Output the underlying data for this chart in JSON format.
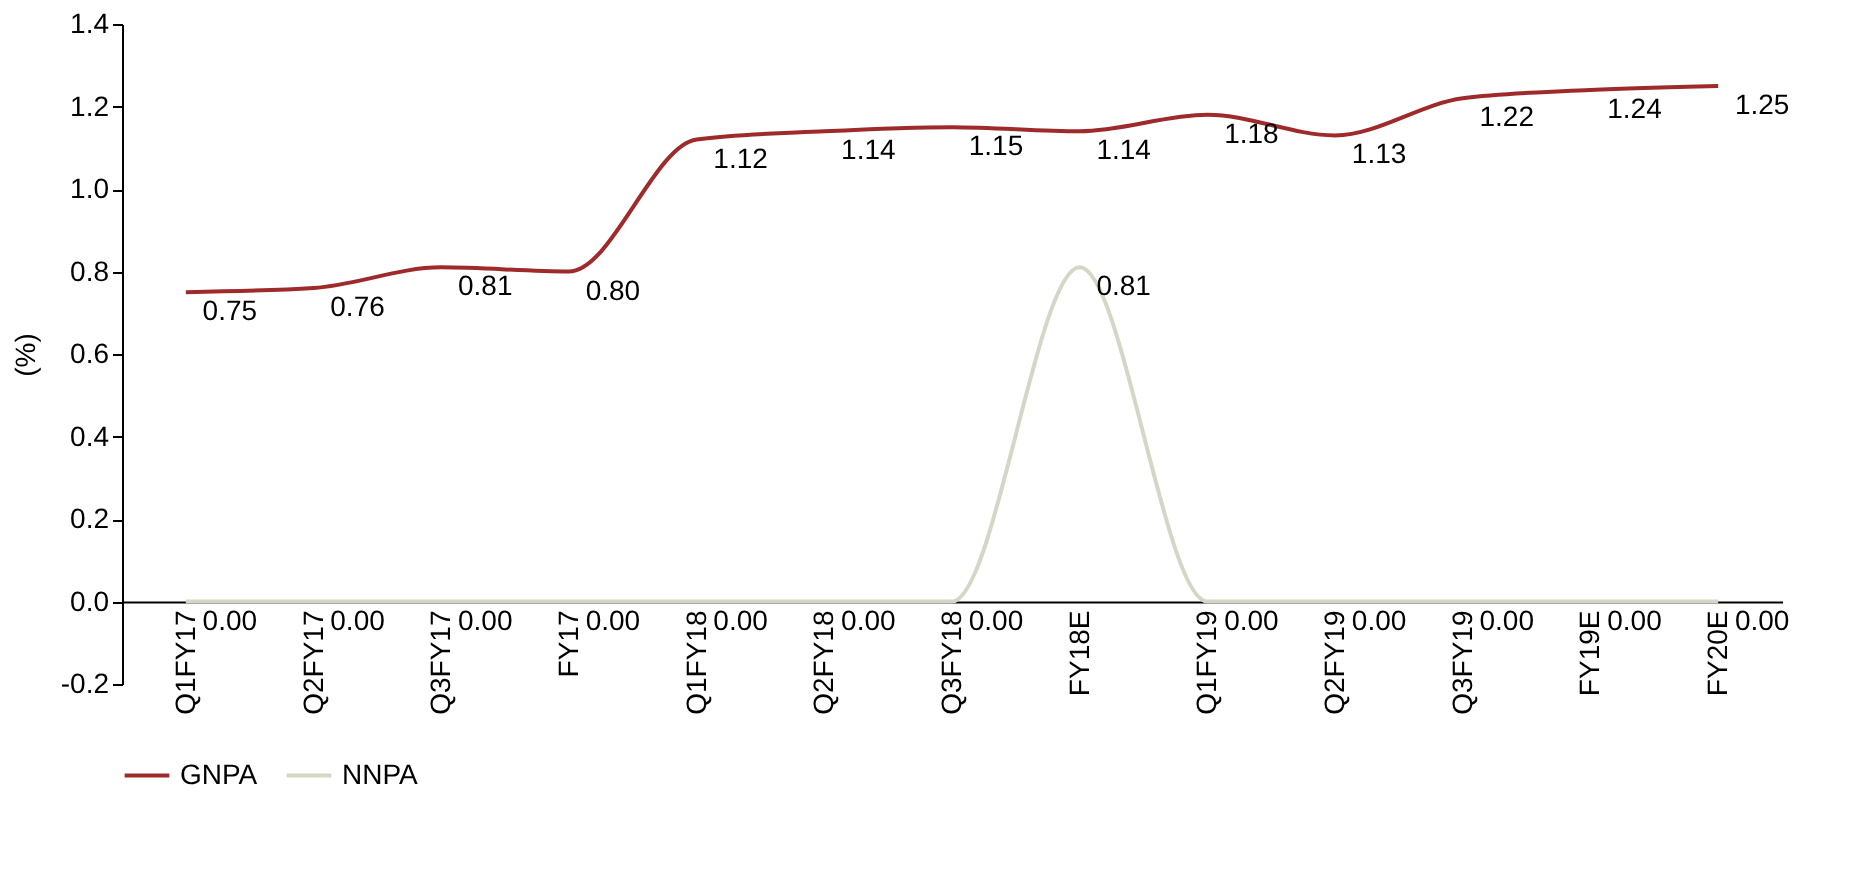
{
  "chart_data": {
    "type": "line",
    "ylabel": "(%)",
    "categories": [
      "Q1FY17",
      "Q2FY17",
      "Q3FY17",
      "FY17",
      "Q1FY18",
      "Q2FY18",
      "Q3FY18",
      "FY18E",
      "Q1FY19",
      "Q2FY19",
      "Q3FY19",
      "FY19E",
      "FY20E"
    ],
    "series": [
      {
        "name": "GNPA",
        "color": "#9e2a2b",
        "values": [
          0.75,
          0.76,
          0.81,
          0.8,
          1.12,
          1.14,
          1.15,
          1.14,
          1.18,
          1.13,
          1.22,
          1.24,
          1.25
        ],
        "value_labels": [
          "0.75",
          "0.76",
          "0.81",
          "0.80",
          "1.12",
          "1.14",
          "1.15",
          "1.14",
          "1.18",
          "1.13",
          "1.22",
          "1.24",
          "1.25"
        ]
      },
      {
        "name": "NNPA",
        "color": "#d6d6c6",
        "values": [
          0,
          0,
          0,
          0,
          0,
          0,
          0,
          0.81,
          0,
          0,
          0,
          0,
          0
        ],
        "value_labels": [
          "0.00",
          "0.00",
          "0.00",
          "0.00",
          "0.00",
          "0.00",
          "0.00",
          "0.81",
          "0.00",
          "0.00",
          "0.00",
          "0.00",
          "0.00"
        ]
      }
    ],
    "ylim": [
      -0.2,
      1.4
    ],
    "yticks": [
      {
        "value": -0.2,
        "label": "-0.2"
      },
      {
        "value": 0,
        "label": "0.0"
      },
      {
        "value": 0.2,
        "label": "0.2"
      },
      {
        "value": 0.4,
        "label": "0.4"
      },
      {
        "value": 0.6,
        "label": "0.6"
      },
      {
        "value": 0.8,
        "label": "0.8"
      },
      {
        "value": 1,
        "label": "1.0"
      },
      {
        "value": 1.2,
        "label": "1.2"
      },
      {
        "value": 1.4,
        "label": "1.4"
      }
    ],
    "grid": false,
    "legend": "bottom",
    "marker": "none",
    "line_style": "solid"
  }
}
